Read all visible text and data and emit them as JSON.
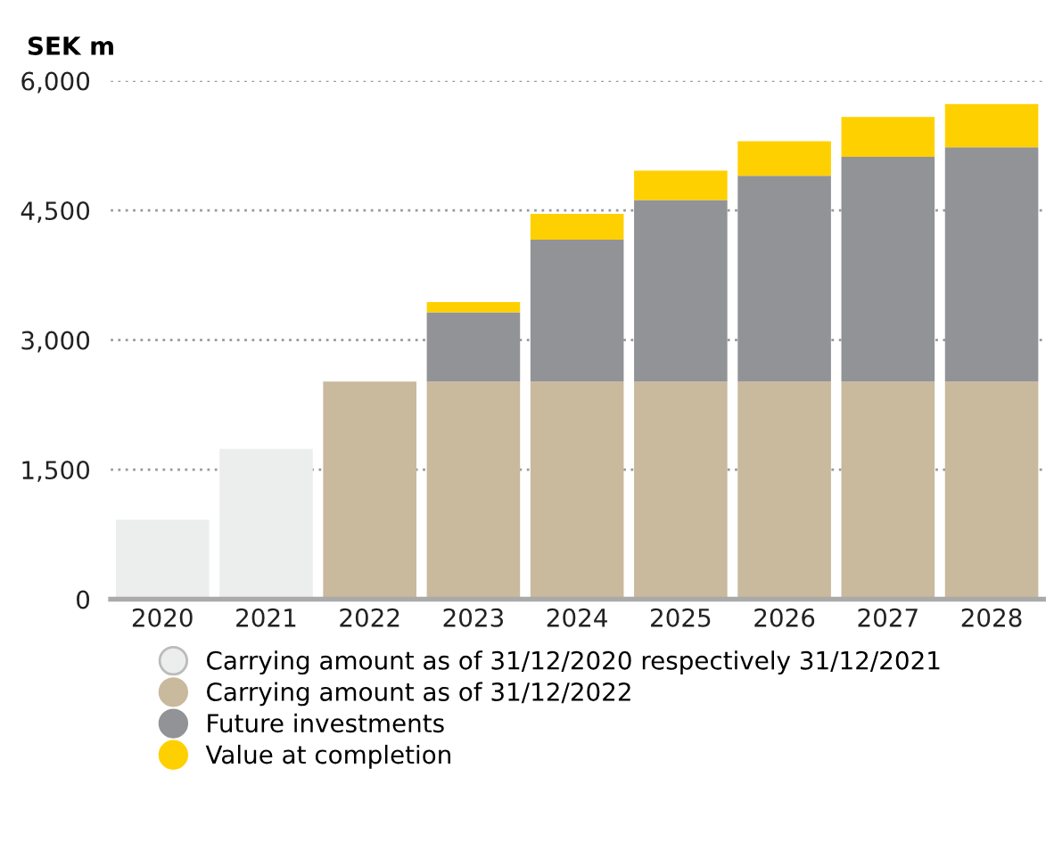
{
  "chart_data": {
    "type": "bar",
    "stacked": true,
    "ylabel": "SEK m",
    "categories": [
      "2020",
      "2021",
      "2022",
      "2023",
      "2024",
      "2025",
      "2026",
      "2027",
      "2028"
    ],
    "series": [
      {
        "name": "Carrying amount as of 31/12/2020 respectively 31/12/2021",
        "color": "#eceeed",
        "values": [
          920,
          1740,
          null,
          null,
          null,
          null,
          null,
          null,
          null
        ]
      },
      {
        "name": "Carrying amount as of 31/12/2022",
        "color": "#c9b99d",
        "values": [
          null,
          null,
          2520,
          2520,
          2520,
          2520,
          2520,
          2520,
          2520
        ]
      },
      {
        "name": "Future investments",
        "color": "#929396",
        "values": [
          null,
          null,
          null,
          800,
          1640,
          2100,
          2380,
          2600,
          2710
        ]
      },
      {
        "name": "Value at completion",
        "color": "#ffd000",
        "values": [
          null,
          null,
          null,
          120,
          300,
          340,
          400,
          460,
          500
        ]
      }
    ],
    "ylim": [
      0,
      6000
    ],
    "yticks": [
      {
        "value": 0,
        "label": "0"
      },
      {
        "value": 1500,
        "label": "1,500"
      },
      {
        "value": 3000,
        "label": "3,000"
      },
      {
        "value": 4500,
        "label": "4,500"
      },
      {
        "value": 6000,
        "label": "6,000"
      }
    ],
    "grid": "y",
    "legend": "bottom"
  }
}
